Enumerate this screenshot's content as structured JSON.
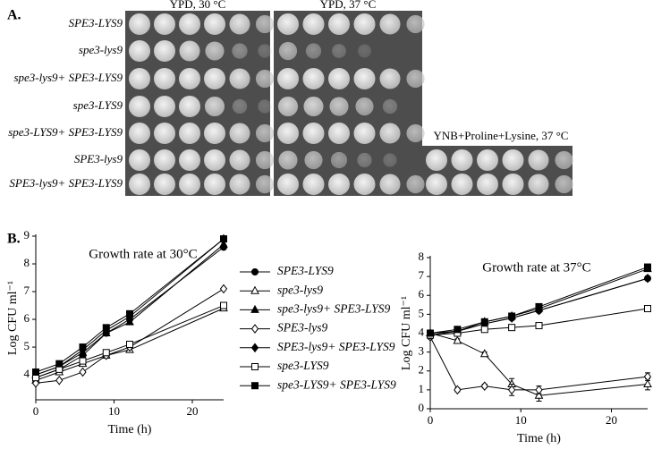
{
  "panel_a": {
    "label": "A.",
    "plate_titles": [
      "YPD, 30 °C",
      "YPD, 37 °C",
      "YNB+Proline+Lysine, 37 °C"
    ],
    "strains": [
      "SPE3-LYS9",
      "spe3-lys9",
      "spe3-lys9+ SPE3-LYS9",
      "spe3-LYS9",
      "spe3-LYS9+ SPE3-LYS9",
      "SPE3-lys9",
      "SPE3-lys9+ SPE3-LYS9"
    ]
  },
  "panel_b": {
    "label": "B."
  },
  "chart_data": [
    {
      "type": "line",
      "title": "Growth rate at 30°C",
      "x_label": "Time (h)",
      "y_label": "Log CFU ml⁻¹",
      "x": [
        0,
        3,
        6,
        9,
        12,
        24
      ],
      "xlim": [
        0,
        24
      ],
      "ylim": [
        3.1,
        9
      ],
      "xticks": [
        0,
        10,
        20
      ],
      "yticks": [
        4,
        5,
        6,
        7,
        8,
        9
      ],
      "legend": "right",
      "series": [
        {
          "name": "SPE3-LYS9",
          "color": "#000000",
          "marker": "circle",
          "filled": true,
          "values": [
            3.9,
            4.2,
            4.7,
            5.5,
            6.0,
            8.6
          ]
        },
        {
          "name": "spe3-lys9",
          "color": "#000000",
          "marker": "triangle",
          "filled": false,
          "values": [
            3.8,
            4.1,
            4.4,
            4.7,
            4.9,
            6.4
          ]
        },
        {
          "name": "spe3-lys9+ SPE3-LYS9",
          "color": "#000000",
          "marker": "triangle",
          "filled": true,
          "values": [
            4.0,
            4.3,
            4.8,
            5.5,
            5.9,
            8.7
          ]
        },
        {
          "name": "SPE3-lys9",
          "color": "#000000",
          "marker": "diamond",
          "filled": false,
          "values": [
            3.7,
            3.8,
            4.1,
            4.7,
            5.0,
            7.1
          ]
        },
        {
          "name": "SPE3-lys9+ SPE3-LYS9",
          "color": "#000000",
          "marker": "diamond",
          "filled": true,
          "values": [
            4.0,
            4.3,
            4.9,
            5.6,
            6.1,
            8.9
          ]
        },
        {
          "name": "spe3-LYS9",
          "color": "#000000",
          "marker": "square",
          "filled": false,
          "values": [
            3.9,
            4.2,
            4.5,
            4.8,
            5.1,
            6.5
          ]
        },
        {
          "name": "spe3-LYS9+ SPE3-LYS9",
          "color": "#000000",
          "marker": "square",
          "filled": true,
          "values": [
            4.1,
            4.4,
            5.0,
            5.7,
            6.2,
            8.9
          ]
        }
      ]
    },
    {
      "type": "line",
      "title": "Growth rate at 37°C",
      "x_label": "Time (h)",
      "y_label": "Log CFU ml⁻¹",
      "x": [
        0,
        3,
        6,
        9,
        12,
        24
      ],
      "xlim": [
        0,
        24
      ],
      "ylim": [
        0,
        8
      ],
      "xticks": [
        0,
        10,
        20
      ],
      "yticks": [
        0,
        1,
        2,
        3,
        4,
        5,
        6,
        7,
        8
      ],
      "series": [
        {
          "color": "#000000",
          "marker": "circle",
          "filled": true,
          "values": [
            4.0,
            4.1,
            4.5,
            4.8,
            5.2,
            6.9
          ]
        },
        {
          "color": "#000000",
          "marker": "triangle",
          "filled": false,
          "values": [
            4.0,
            3.6,
            2.9,
            1.3,
            0.7,
            1.3
          ],
          "errors": [
            0.1,
            0.1,
            0.1,
            0.3,
            0.3,
            0.3
          ]
        },
        {
          "color": "#000000",
          "marker": "triangle",
          "filled": true,
          "values": [
            4.0,
            4.1,
            4.6,
            4.9,
            5.3,
            7.4
          ]
        },
        {
          "color": "#000000",
          "marker": "diamond",
          "filled": false,
          "values": [
            3.8,
            1.0,
            1.2,
            1.0,
            1.0,
            1.7
          ],
          "errors": [
            0.1,
            0.1,
            0.1,
            0.3,
            0.2,
            0.2
          ]
        },
        {
          "color": "#000000",
          "marker": "diamond",
          "filled": true,
          "values": [
            3.9,
            4.1,
            4.5,
            4.8,
            5.2,
            6.9
          ]
        },
        {
          "color": "#000000",
          "marker": "square",
          "filled": false,
          "values": [
            3.9,
            4.0,
            4.2,
            4.3,
            4.4,
            5.3
          ]
        },
        {
          "color": "#000000",
          "marker": "square",
          "filled": true,
          "values": [
            4.0,
            4.2,
            4.6,
            4.9,
            5.4,
            7.5
          ]
        }
      ]
    }
  ]
}
